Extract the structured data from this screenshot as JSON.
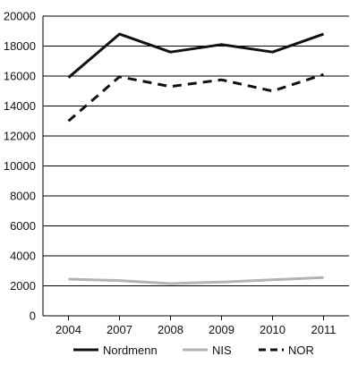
{
  "chart_data": {
    "type": "line",
    "categories": [
      "2004",
      "2007",
      "2008",
      "2009",
      "2010",
      "2011"
    ],
    "series": [
      {
        "name": "Nordmenn",
        "values": [
          15900,
          18800,
          17600,
          18100,
          17600,
          18800
        ],
        "color": "#111111",
        "style": "solid"
      },
      {
        "name": "NIS",
        "values": [
          2450,
          2350,
          2150,
          2250,
          2400,
          2550
        ],
        "color": "#b3b3b3",
        "style": "solid"
      },
      {
        "name": "NOR",
        "values": [
          13000,
          15950,
          15300,
          15750,
          15000,
          16100
        ],
        "color": "#111111",
        "style": "dashed"
      }
    ],
    "yticks": [
      "0",
      "2000",
      "4000",
      "6000",
      "8000",
      "10000",
      "12000",
      "14000",
      "16000",
      "18000",
      "20000"
    ],
    "ylim": [
      0,
      20000
    ],
    "grid": true,
    "legend_position": "bottom"
  }
}
